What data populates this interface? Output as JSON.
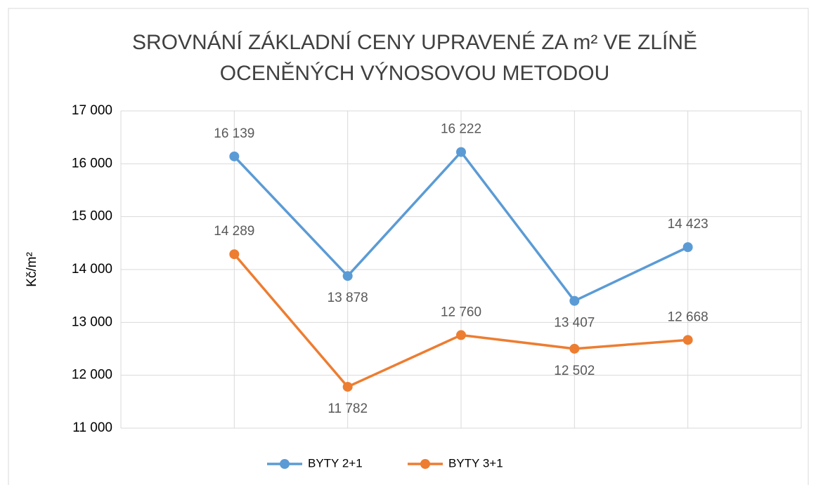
{
  "chart_data": {
    "type": "line",
    "title": [
      "SROVNÁNÍ ZÁKLADNÍ CENY UPRAVENÉ ZA m² VE ZLÍNĚ",
      "OCENĚNÝCH VÝNOSOVOU METODOU"
    ],
    "y_label": "Kč/m²",
    "categories": [
      null,
      null,
      null,
      null,
      null
    ],
    "series": [
      {
        "name": "BYTY 2+1",
        "color": "#5b9bd5",
        "values": [
          16139,
          13878,
          16222,
          13407,
          14423
        ],
        "value_labels": [
          "16 139",
          "13 878",
          "16 222",
          "13 407",
          "14 423"
        ]
      },
      {
        "name": "BYTY 3+1",
        "color": "#ed7d31",
        "values": [
          14289,
          11782,
          12760,
          12502,
          12668
        ],
        "value_labels": [
          "14 289",
          "11 782",
          "12 760",
          "12 502",
          "12 668"
        ]
      }
    ],
    "ylim": [
      11000,
      17000
    ],
    "yticks": [
      {
        "value": 11000,
        "label": "11 000"
      },
      {
        "value": 12000,
        "label": "12 000"
      },
      {
        "value": 13000,
        "label": "13 000"
      },
      {
        "value": 14000,
        "label": "14 000"
      },
      {
        "value": 15000,
        "label": "15 000"
      },
      {
        "value": 16000,
        "label": "16 000"
      },
      {
        "value": 17000,
        "label": "17 000"
      }
    ],
    "grid": true,
    "legend": "bottom"
  }
}
